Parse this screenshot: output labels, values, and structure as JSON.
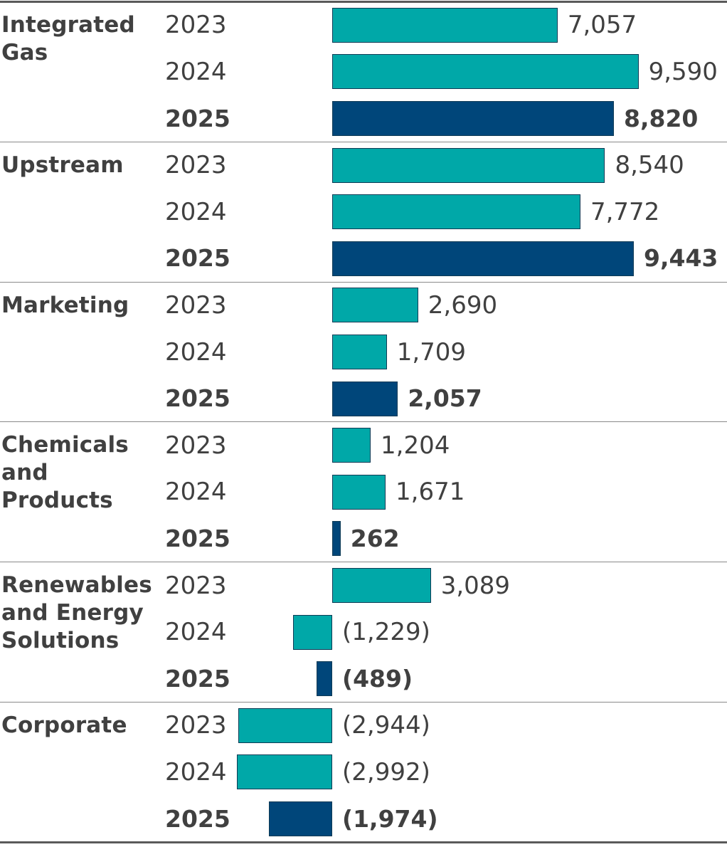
{
  "chart_data": {
    "type": "bar",
    "orientation": "horizontal",
    "title": "",
    "xlabel": "",
    "ylabel": "",
    "colors": {
      "prior": "#00a8a8",
      "current": "#00467a"
    },
    "xlim": [
      -3000,
      9500
    ],
    "segments": [
      {
        "name": "Integrated Gas",
        "lines": [
          "Integrated",
          "Gas"
        ],
        "bars": [
          {
            "year": "2023",
            "value": 7057,
            "label": "7,057"
          },
          {
            "year": "2024",
            "value": 9590,
            "label": "9,590"
          },
          {
            "year": "2025",
            "value": 8820,
            "label": "8,820",
            "current": true
          }
        ]
      },
      {
        "name": "Upstream",
        "lines": [
          "Upstream"
        ],
        "bars": [
          {
            "year": "2023",
            "value": 8540,
            "label": "8,540"
          },
          {
            "year": "2024",
            "value": 7772,
            "label": "7,772"
          },
          {
            "year": "2025",
            "value": 9443,
            "label": "9,443",
            "current": true
          }
        ]
      },
      {
        "name": "Marketing",
        "lines": [
          "Marketing"
        ],
        "bars": [
          {
            "year": "2023",
            "value": 2690,
            "label": "2,690"
          },
          {
            "year": "2024",
            "value": 1709,
            "label": "1,709"
          },
          {
            "year": "2025",
            "value": 2057,
            "label": "2,057",
            "current": true
          }
        ]
      },
      {
        "name": "Chemicals and Products",
        "lines": [
          "Chemicals",
          "and",
          "Products"
        ],
        "bars": [
          {
            "year": "2023",
            "value": 1204,
            "label": "1,204"
          },
          {
            "year": "2024",
            "value": 1671,
            "label": "1,671"
          },
          {
            "year": "2025",
            "value": 262,
            "label": "262",
            "current": true
          }
        ]
      },
      {
        "name": "Renewables and Energy Solutions",
        "lines": [
          "Renewables",
          "and Energy",
          "Solutions"
        ],
        "bars": [
          {
            "year": "2023",
            "value": 3089,
            "label": "3,089"
          },
          {
            "year": "2024",
            "value": -1229,
            "label": "(1,229)"
          },
          {
            "year": "2025",
            "value": -489,
            "label": "(489)",
            "current": true
          }
        ]
      },
      {
        "name": "Corporate",
        "lines": [
          "Corporate"
        ],
        "bars": [
          {
            "year": "2023",
            "value": -2944,
            "label": "(2,944)"
          },
          {
            "year": "2024",
            "value": -2992,
            "label": "(2,992)"
          },
          {
            "year": "2025",
            "value": -1974,
            "label": "(1,974)",
            "current": true
          }
        ]
      }
    ]
  }
}
